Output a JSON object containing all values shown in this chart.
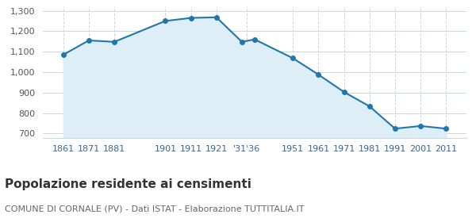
{
  "years": [
    1861,
    1871,
    1881,
    1901,
    1911,
    1921,
    1931,
    1936,
    1951,
    1961,
    1971,
    1981,
    1991,
    2001,
    2011
  ],
  "population": [
    1085,
    1155,
    1148,
    1250,
    1265,
    1268,
    1148,
    1160,
    1068,
    988,
    903,
    833,
    724,
    737,
    724
  ],
  "tick_years": [
    1861,
    1871,
    1881,
    1901,
    1911,
    1921,
    1933,
    1951,
    1961,
    1971,
    1981,
    1991,
    2001,
    2011
  ],
  "tick_labels": [
    "1861",
    "1871",
    "1881",
    "1901",
    "1911",
    "1921",
    "'31'36",
    "1951",
    "1961",
    "1971",
    "1981",
    "1991",
    "2001",
    "2011"
  ],
  "line_color": "#2176ae",
  "fill_color": "#deeef6",
  "marker_color": "#2176ae",
  "background_color": "#ffffff",
  "grid_color": "#c8d8e4",
  "ylim": [
    680,
    1320
  ],
  "yticks": [
    700,
    800,
    900,
    1000,
    1100,
    1200,
    1300
  ],
  "title": "Popolazione residente ai censimenti",
  "subtitle": "COMUNE DI CORNALE (PV) - Dati ISTAT - Elaborazione TUTTITALIA.IT",
  "title_color": "#333333",
  "subtitle_color": "#666666",
  "tick_label_color": "#336699",
  "title_fontsize": 11,
  "subtitle_fontsize": 8,
  "axis_fontsize": 8
}
